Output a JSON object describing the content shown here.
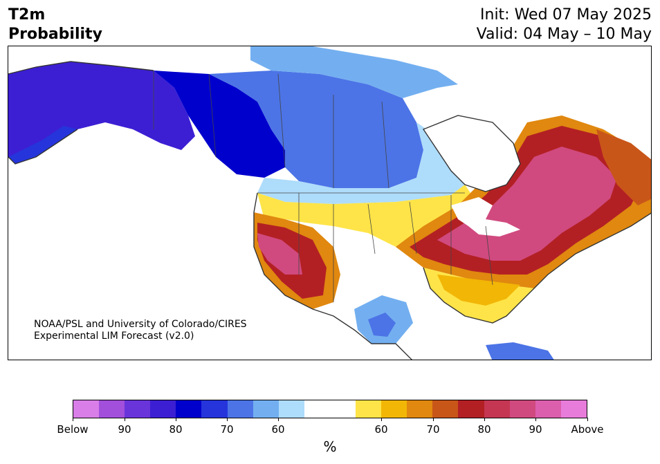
{
  "header": {
    "variable": "T2m",
    "product": "Probability",
    "init": "Init: Wed 07 May 2025",
    "valid": "Valid: 04 May – 10 May"
  },
  "credit": {
    "line1": "NOAA/PSL and University of Colorado/CIRES",
    "line2": "Experimental LIM Forecast (v2.0)"
  },
  "colorbar": {
    "unit": "%",
    "segments": [
      {
        "color": "#d97ee8",
        "class": "below"
      },
      {
        "color": "#a24fdc",
        "class": "below"
      },
      {
        "color": "#6a34db",
        "class": "below"
      },
      {
        "color": "#3c1fd3",
        "class": "below"
      },
      {
        "color": "#0000cd",
        "class": "below"
      },
      {
        "color": "#2535db",
        "class": "below"
      },
      {
        "color": "#4c74e6",
        "class": "below"
      },
      {
        "color": "#73aff0",
        "class": "below"
      },
      {
        "color": "#aedcfb",
        "class": "below"
      },
      {
        "color": "#ffffff",
        "class": "neutral"
      },
      {
        "color": "#fee448",
        "class": "above"
      },
      {
        "color": "#f2b606",
        "class": "above"
      },
      {
        "color": "#e0880f",
        "class": "above"
      },
      {
        "color": "#c95619",
        "class": "above"
      },
      {
        "color": "#b32024",
        "class": "above"
      },
      {
        "color": "#c43652",
        "class": "above"
      },
      {
        "color": "#d04a7f",
        "class": "above"
      },
      {
        "color": "#dc5fae",
        "class": "above"
      },
      {
        "color": "#e87cdb",
        "class": "above"
      }
    ],
    "tick_labels": [
      "Below",
      "90",
      "80",
      "70",
      "60",
      "60",
      "70",
      "80",
      "90",
      "Above"
    ]
  },
  "map": {
    "region": "North America",
    "coastline_color": "#333333",
    "regions": [
      {
        "name": "alaska-below-strong",
        "color": "#3c1fd3"
      },
      {
        "name": "western-canada-below",
        "color": "#0000cd"
      },
      {
        "name": "central-canada-below",
        "color": "#4c74e6"
      },
      {
        "name": "arctic-below-light",
        "color": "#73aff0"
      },
      {
        "name": "prairie-below-light",
        "color": "#aedcfb"
      },
      {
        "name": "great-lakes-above",
        "color": "#b32024"
      },
      {
        "name": "northeast-above-strong",
        "color": "#d04a7f"
      },
      {
        "name": "southwest-above-strong",
        "color": "#d04a7f"
      },
      {
        "name": "southeast-above",
        "color": "#fee448"
      },
      {
        "name": "mexico-below",
        "color": "#73aff0"
      },
      {
        "name": "labrador-above",
        "color": "#c95619"
      }
    ]
  }
}
